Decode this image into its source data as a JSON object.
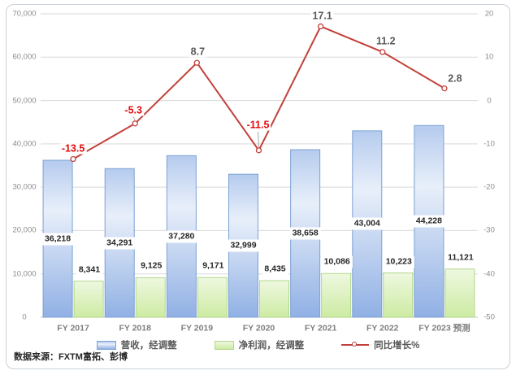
{
  "chart_data": {
    "type": "combo",
    "categories": [
      "FY 2017",
      "FY 2018",
      "FY 2019",
      "FY 2020",
      "FY 2021",
      "FY 2022",
      "FY 2023 预测"
    ],
    "series": [
      {
        "name": "营收，经调整",
        "type": "bar",
        "axis": "left",
        "values": [
          36218,
          34291,
          37280,
          32999,
          38658,
          43004,
          44228
        ],
        "labels": [
          "36,218",
          "34,291",
          "37,280",
          "32,999",
          "38,658",
          "43,004",
          "44,228"
        ]
      },
      {
        "name": "净利润，经调整",
        "type": "bar",
        "axis": "left",
        "values": [
          8341,
          9125,
          9171,
          8435,
          10086,
          10223,
          11121
        ],
        "labels": [
          "8,341",
          "9,125",
          "9,171",
          "8,435",
          "10,086",
          "10,223",
          "11,121"
        ]
      },
      {
        "name": "同比增长%",
        "type": "line",
        "axis": "right",
        "values": [
          -13.5,
          -5.3,
          8.7,
          -11.5,
          17.1,
          11.2,
          2.8
        ],
        "labels": [
          "-13.5",
          "-5.3",
          "8.7",
          "-11.5",
          "17.1",
          "11.2",
          "2.8"
        ]
      }
    ],
    "left_axis": {
      "min": 0,
      "max": 70000,
      "step": 10000,
      "ticks": [
        "0",
        "10,000",
        "20,000",
        "30,000",
        "40,000",
        "50,000",
        "60,000",
        "70,000"
      ]
    },
    "right_axis": {
      "min": -50,
      "max": 20,
      "step": 10,
      "ticks": [
        "-50",
        "-40",
        "-30",
        "-20",
        "-10",
        "0",
        "10",
        "20"
      ]
    },
    "grid": true,
    "legend_position": "bottom"
  },
  "footer": {
    "source_label": "数据来源：FXTM富拓、彭博"
  },
  "colors": {
    "revenue_bar_top": "#b5cbee",
    "revenue_bar_mid": "#e8effa",
    "revenue_bar_bottom": "#90b0e4",
    "revenue_bar_border": "#7da1d4",
    "profit_bar_top": "#eef8e0",
    "profit_bar_bottom": "#cdeba3",
    "profit_bar_border": "#b1d78a",
    "line_color": "#c2403a",
    "marker_fill": "#ffffff",
    "leader_line_color": "#a6a6a6",
    "negative_label_color": "#e00b0b",
    "positive_label_color": "#595959",
    "grid_color": "#d9d9d9",
    "axis_line_color": "#c0c0c0",
    "axis_text_color": "#8c8c8c",
    "category_text_color": "#7f7f7f",
    "value_label_color": "#262626",
    "frame_border_color": "#c9d1da"
  }
}
